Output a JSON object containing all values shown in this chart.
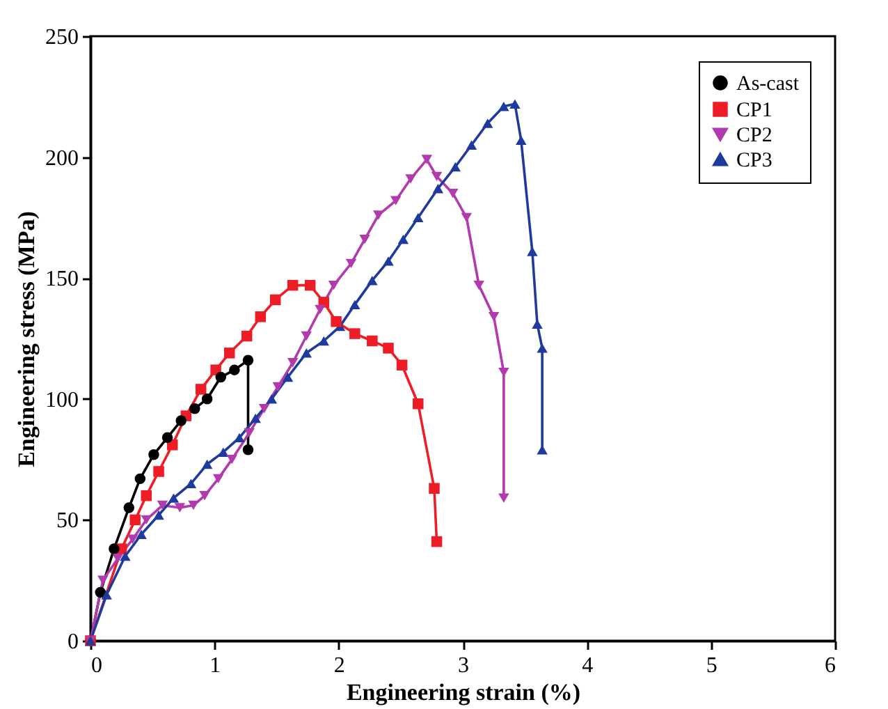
{
  "chart_data": {
    "type": "line",
    "xlabel": "Engineering strain (%)",
    "ylabel": "Engineering stress (MPa)",
    "xlim": [
      0,
      6
    ],
    "xticks": [
      0,
      1,
      2,
      3,
      4,
      5,
      6
    ],
    "ylim": [
      0,
      250
    ],
    "yticks": [
      0,
      50,
      100,
      150,
      200,
      250
    ],
    "grid": false,
    "legend": "top right",
    "series": [
      {
        "name": "As-cast",
        "color": "#000000",
        "marker": "circle",
        "x": [
          0,
          0.08,
          0.19,
          0.31,
          0.4,
          0.51,
          0.62,
          0.73,
          0.84,
          0.94,
          1.05,
          1.16,
          1.27,
          1.27
        ],
        "values": [
          0,
          20,
          38,
          55,
          67,
          77,
          84,
          91,
          96,
          100,
          109,
          112,
          116,
          79
        ]
      },
      {
        "name": "CP1",
        "color": "#ee1c24",
        "marker": "square",
        "x": [
          0,
          0.25,
          0.36,
          0.45,
          0.55,
          0.66,
          0.77,
          0.89,
          1.01,
          1.12,
          1.26,
          1.37,
          1.49,
          1.63,
          1.77,
          1.88,
          1.98,
          2.13,
          2.27,
          2.4,
          2.51,
          2.64,
          2.77,
          2.79
        ],
        "values": [
          0,
          38,
          50,
          60,
          70,
          81,
          93,
          104,
          112,
          119,
          126,
          134,
          141,
          147,
          147,
          140,
          132,
          127,
          124,
          121,
          114,
          98,
          63,
          41
        ]
      },
      {
        "name": "CP2",
        "color": "#b23aac",
        "marker": "triangle-down",
        "x": [
          0,
          0.1,
          0.22,
          0.34,
          0.45,
          0.58,
          0.72,
          0.83,
          0.92,
          1.03,
          1.14,
          1.28,
          1.4,
          1.51,
          1.63,
          1.74,
          1.85,
          1.96,
          2.1,
          2.21,
          2.32,
          2.46,
          2.58,
          2.71,
          2.79,
          2.92,
          3.03,
          3.13,
          3.25,
          3.33,
          3.33
        ],
        "values": [
          0,
          25,
          34,
          42,
          50,
          56,
          55,
          56,
          60,
          67,
          75,
          86,
          96,
          105,
          115,
          126,
          137,
          147,
          156,
          166,
          176,
          182,
          191,
          199,
          192,
          185,
          175,
          147,
          134,
          111,
          59
        ]
      },
      {
        "name": "CP3",
        "color": "#1f3a9f",
        "marker": "triangle-up",
        "x": [
          0,
          0.13,
          0.28,
          0.41,
          0.55,
          0.67,
          0.81,
          0.94,
          1.07,
          1.2,
          1.33,
          1.46,
          1.59,
          1.74,
          1.88,
          2.01,
          2.13,
          2.27,
          2.4,
          2.52,
          2.64,
          2.8,
          2.94,
          3.07,
          3.2,
          3.33,
          3.42,
          3.47,
          3.56,
          3.6,
          3.64,
          3.64
        ],
        "values": [
          0,
          19,
          35,
          44,
          52,
          59,
          65,
          73,
          78,
          84,
          92,
          100,
          109,
          119,
          124,
          130,
          139,
          149,
          157,
          166,
          175,
          187,
          196,
          205,
          214,
          221,
          222,
          207,
          161,
          131,
          121,
          79
        ]
      }
    ]
  }
}
